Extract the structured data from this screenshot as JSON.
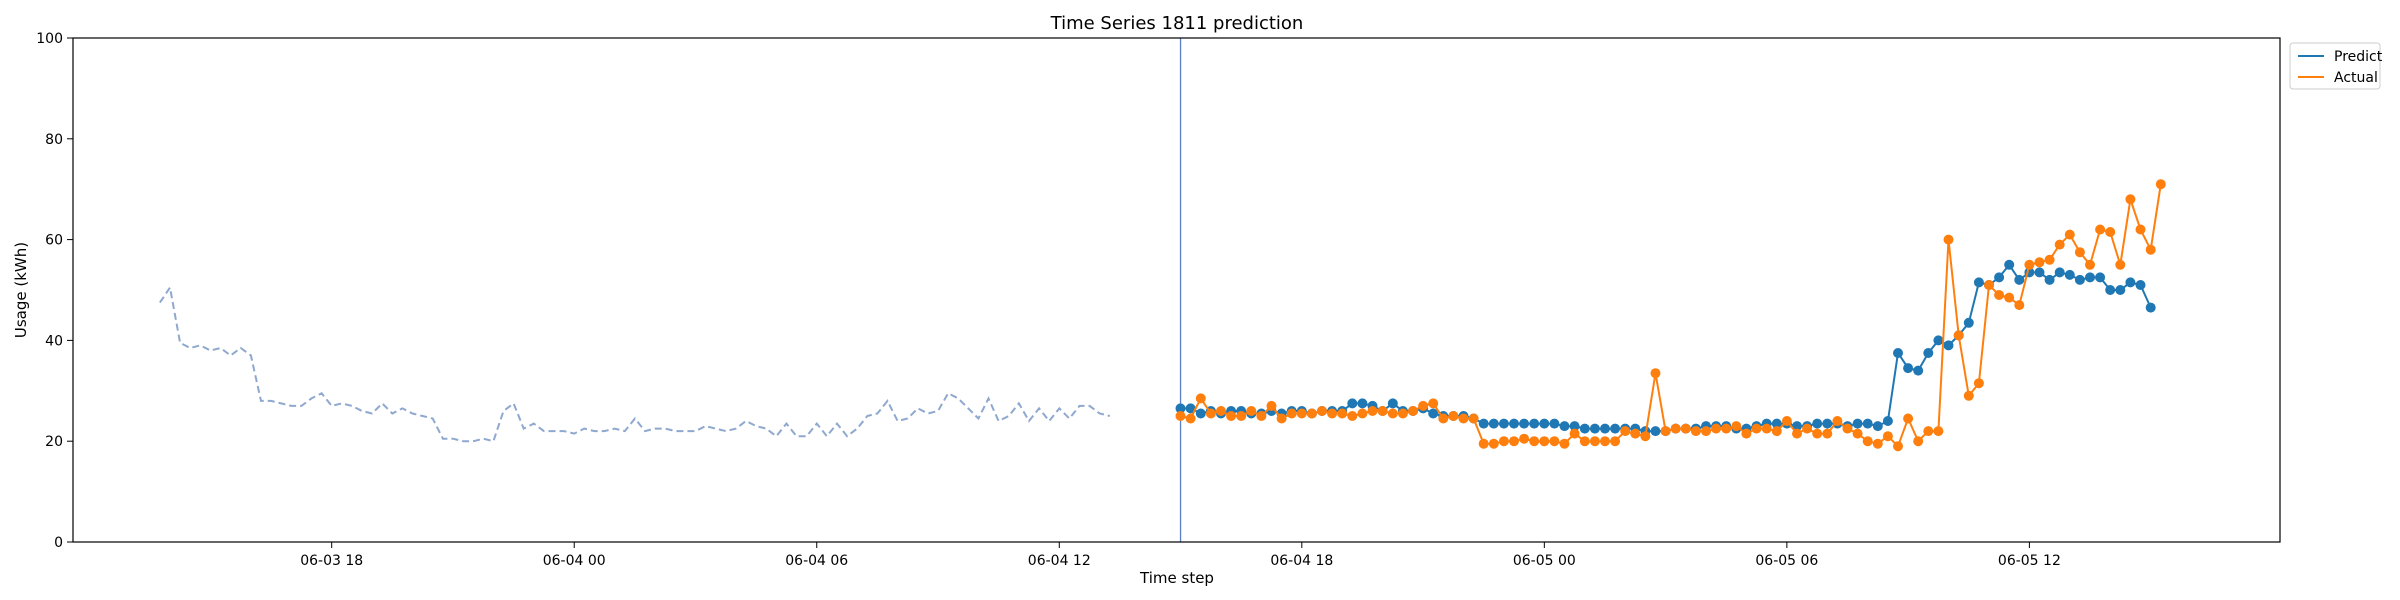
{
  "chart_data": {
    "type": "line",
    "title": "Time Series 1811 prediction",
    "xlabel": "Time step",
    "ylabel": "Usage (kWh)",
    "ylim": [
      0,
      100
    ],
    "yticks": [
      0,
      20,
      40,
      60,
      80,
      100
    ],
    "xlim": [
      -2.8,
      106.4
    ],
    "xticks": [
      {
        "pos": 10,
        "label": "06-03 18"
      },
      {
        "pos": 22,
        "label": "06-04 00"
      },
      {
        "pos": 34,
        "label": "06-04 06"
      },
      {
        "pos": 46,
        "label": "06-04 12"
      },
      {
        "pos": 58,
        "label": "06-04 18"
      },
      {
        "pos": 70,
        "label": "06-05 00"
      },
      {
        "pos": 82,
        "label": "06-05 06"
      },
      {
        "pos": 94,
        "label": "06-05 12"
      }
    ],
    "forecast_start": 52,
    "grid": false,
    "legend_position": "top-right-outside",
    "history": {
      "start": 1.5,
      "step": 0.5,
      "values": [
        47.5,
        50.5,
        39.5,
        38.5,
        39,
        38,
        38.5,
        37,
        38.5,
        37,
        28,
        28,
        27.5,
        27,
        27,
        28.5,
        29.5,
        27,
        27.5,
        27,
        26,
        25.5,
        27.5,
        25.5,
        26.5,
        25.5,
        25,
        24.5,
        20.5,
        20.5,
        20,
        20,
        20.5,
        20,
        26,
        27.5,
        22.5,
        23.5,
        22,
        22,
        22,
        21.5,
        22.5,
        22,
        22,
        22.5,
        22,
        24.5,
        22,
        22.5,
        22.5,
        22,
        22,
        22,
        23,
        22.5,
        22,
        22.5,
        24,
        23,
        22.5,
        21,
        23.5,
        21,
        21,
        23.5,
        21,
        23.5,
        21,
        22.5,
        25,
        25.5,
        28,
        24,
        24.5,
        26.5,
        25.5,
        26,
        29.5,
        28.5,
        26.5,
        24.5,
        28.5,
        24,
        25,
        27.5,
        24,
        26.5,
        24,
        26.5,
        24.5,
        27,
        27,
        25.5,
        25
      ]
    },
    "series": [
      {
        "name": "Predict",
        "color": "#1f77b4",
        "start": 52,
        "step": 0.5,
        "values": [
          26.5,
          26.5,
          25.5,
          26,
          25.5,
          26,
          26,
          25.5,
          25.5,
          26,
          25.5,
          26,
          26,
          25.5,
          26,
          26,
          26,
          27.5,
          27.5,
          27,
          26,
          27.5,
          26,
          26,
          26.5,
          25.5,
          25,
          25,
          25,
          24.5,
          23.5,
          23.5,
          23.5,
          23.5,
          23.5,
          23.5,
          23.5,
          23.5,
          23,
          23,
          22.5,
          22.5,
          22.5,
          22.5,
          22.5,
          22.5,
          22,
          22,
          22,
          22.5,
          22.5,
          22.5,
          23,
          23,
          23,
          22.5,
          22.5,
          23,
          23.5,
          23.5,
          23.5,
          23,
          23,
          23.5,
          23.5,
          23.5,
          23,
          23.5,
          23.5,
          23,
          24,
          37.5,
          34.5,
          34,
          37.5,
          40,
          39,
          41,
          43.5,
          51.5,
          51,
          52.5,
          55,
          52,
          53.5,
          53.5,
          52,
          53.5,
          53,
          52,
          52.5,
          52.5,
          50,
          50,
          51.5,
          51,
          46.5
        ]
      },
      {
        "name": "Actual",
        "color": "#ff7f0e",
        "start": 52,
        "step": 0.5,
        "values": [
          25,
          24.5,
          28.5,
          25.5,
          26,
          25,
          25,
          26,
          25,
          27,
          24.5,
          25.5,
          25.5,
          25.5,
          26,
          25.5,
          25.5,
          25,
          25.5,
          26,
          26,
          25.5,
          25.5,
          26,
          27,
          27.5,
          24.5,
          25,
          24.5,
          24.5,
          19.5,
          19.5,
          20,
          20,
          20.5,
          20,
          20,
          20,
          19.5,
          21.5,
          20,
          20,
          20,
          20,
          22,
          21.5,
          21,
          33.5,
          22,
          22.5,
          22.5,
          22,
          22,
          22.5,
          22.5,
          23,
          21.5,
          22.5,
          22.5,
          22,
          24,
          21.5,
          22.5,
          21.5,
          21.5,
          24,
          22.5,
          21.5,
          20,
          19.5,
          21,
          19,
          24.5,
          20,
          22,
          22,
          60,
          41,
          29,
          31.5,
          51,
          49,
          48.5,
          47,
          55,
          55.5,
          56,
          59,
          61,
          57.5,
          55,
          62,
          61.5,
          55,
          68,
          62,
          58,
          71
        ]
      }
    ]
  }
}
